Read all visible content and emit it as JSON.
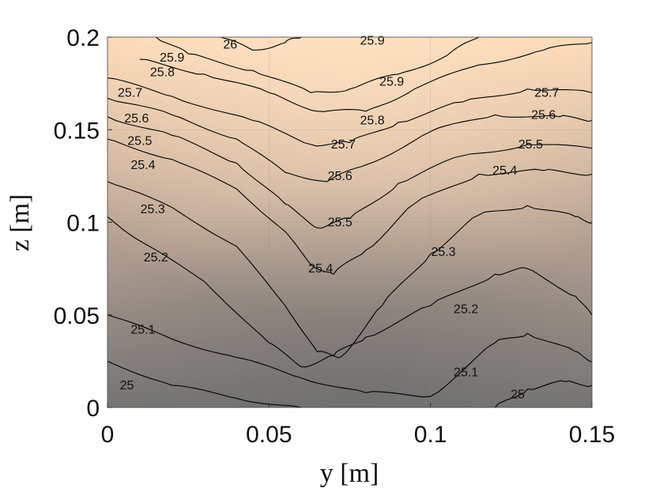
{
  "chart_data": {
    "type": "heatmap",
    "title": "",
    "xlabel": "y [m]",
    "ylabel": "z [m]",
    "xlim": [
      0,
      0.15
    ],
    "ylim": [
      0,
      0.2
    ],
    "x_ticks": [
      "0",
      "0.05",
      "0.1",
      "0.15"
    ],
    "x_tick_values": [
      0,
      0.05,
      0.1,
      0.15
    ],
    "y_ticks": [
      "0",
      "0.05",
      "0.1",
      "0.15",
      "0.2"
    ],
    "y_tick_values": [
      0,
      0.05,
      0.1,
      0.15,
      0.2
    ],
    "grid": true,
    "colormap": {
      "low": "#767676",
      "mid": "#b9a394",
      "high": "#fcd9b6"
    },
    "color_range": [
      24.95,
      26.05
    ],
    "contour_levels": [
      25,
      25.1,
      25.2,
      25.3,
      25.4,
      25.5,
      25.6,
      25.7,
      25.8,
      25.9,
      26
    ],
    "contours": [
      {
        "level": 25,
        "label": "25",
        "points": [
          [
            0,
            0.025
          ],
          [
            0.02,
            0.012
          ],
          [
            0.04,
            0.005
          ],
          [
            0.06,
            0.0
          ]
        ],
        "label_at": [
          0.006,
          0.012
        ]
      },
      {
        "level": 25,
        "label": "25",
        "points": [
          [
            0.12,
            0.0
          ],
          [
            0.13,
            0.01
          ],
          [
            0.142,
            0.014
          ],
          [
            0.15,
            0.012
          ]
        ],
        "label_at": [
          0.127,
          0.007
        ]
      },
      {
        "level": 25.1,
        "label": "25.1",
        "points": [
          [
            0,
            0.05
          ],
          [
            0.02,
            0.037
          ],
          [
            0.04,
            0.027
          ],
          [
            0.06,
            0.016
          ],
          [
            0.08,
            0.008
          ],
          [
            0.1,
            0.006
          ],
          [
            0.12,
            0.035
          ],
          [
            0.13,
            0.04
          ],
          [
            0.145,
            0.03
          ],
          [
            0.15,
            0.025
          ]
        ],
        "label_at": [
          0.011,
          0.042
        ]
      },
      {
        "level": 25.1,
        "label": "25.1",
        "points": [
          [
            0.11,
            0.02
          ]
        ],
        "label_at": [
          0.111,
          0.019
        ]
      },
      {
        "level": 25.2,
        "label": "25.2",
        "points": [
          [
            0,
            0.103
          ],
          [
            0.01,
            0.09
          ],
          [
            0.03,
            0.068
          ],
          [
            0.05,
            0.035
          ],
          [
            0.06,
            0.022
          ],
          [
            0.07,
            0.028
          ],
          [
            0.08,
            0.038
          ],
          [
            0.1,
            0.055
          ],
          [
            0.12,
            0.072
          ],
          [
            0.13,
            0.075
          ],
          [
            0.145,
            0.06
          ],
          [
            0.15,
            0.05
          ]
        ],
        "label_at": [
          0.015,
          0.081
        ]
      },
      {
        "level": 25.2,
        "label": "25.2",
        "points": [
          [
            0.11,
            0.05
          ]
        ],
        "label_at": [
          0.111,
          0.053
        ]
      },
      {
        "level": 25.3,
        "label": "25.3",
        "points": [
          [
            0,
            0.122
          ],
          [
            0.02,
            0.108
          ],
          [
            0.04,
            0.087
          ],
          [
            0.055,
            0.055
          ],
          [
            0.065,
            0.03
          ],
          [
            0.072,
            0.027
          ],
          [
            0.085,
            0.055
          ],
          [
            0.1,
            0.083
          ],
          [
            0.115,
            0.104
          ],
          [
            0.13,
            0.109
          ],
          [
            0.145,
            0.103
          ],
          [
            0.15,
            0.1
          ]
        ],
        "label_at": [
          0.014,
          0.107
        ]
      },
      {
        "level": 25.3,
        "label": "25.3",
        "points": [
          [
            0.1,
            0.082
          ]
        ],
        "label_at": [
          0.104,
          0.084
        ]
      },
      {
        "level": 25.4,
        "label": "25.4",
        "points": [
          [
            0,
            0.145
          ],
          [
            0.02,
            0.134
          ],
          [
            0.04,
            0.118
          ],
          [
            0.055,
            0.095
          ],
          [
            0.063,
            0.077
          ],
          [
            0.07,
            0.072
          ],
          [
            0.08,
            0.085
          ],
          [
            0.095,
            0.11
          ],
          [
            0.115,
            0.126
          ],
          [
            0.135,
            0.128
          ],
          [
            0.15,
            0.126
          ]
        ],
        "label_at": [
          0.011,
          0.131
        ]
      },
      {
        "level": 25.4,
        "label": "25.4",
        "points": [
          [
            0.06,
            0.075
          ]
        ],
        "label_at": [
          0.066,
          0.075
        ]
      },
      {
        "level": 25.4,
        "label": "25.4",
        "points": [
          [
            0.12,
            0.128
          ]
        ],
        "label_at": [
          0.123,
          0.128
        ]
      },
      {
        "level": 25.5,
        "label": "25.5",
        "points": [
          [
            0,
            0.157
          ],
          [
            0.02,
            0.147
          ],
          [
            0.04,
            0.132
          ],
          [
            0.055,
            0.11
          ],
          [
            0.065,
            0.097
          ],
          [
            0.075,
            0.102
          ],
          [
            0.09,
            0.121
          ],
          [
            0.11,
            0.136
          ],
          [
            0.13,
            0.142
          ],
          [
            0.15,
            0.14
          ]
        ],
        "label_at": [
          0.01,
          0.144
        ]
      },
      {
        "level": 25.5,
        "label": "25.5",
        "points": [
          [
            0.07,
            0.1
          ]
        ],
        "label_at": [
          0.072,
          0.1
        ]
      },
      {
        "level": 25.5,
        "label": "25.5",
        "points": [
          [
            0.13,
            0.142
          ]
        ],
        "label_at": [
          0.131,
          0.142
        ]
      },
      {
        "level": 25.6,
        "label": "25.6",
        "points": [
          [
            0,
            0.167
          ],
          [
            0.02,
            0.158
          ],
          [
            0.04,
            0.145
          ],
          [
            0.055,
            0.127
          ],
          [
            0.068,
            0.122
          ],
          [
            0.08,
            0.131
          ],
          [
            0.1,
            0.149
          ],
          [
            0.12,
            0.158
          ],
          [
            0.14,
            0.157
          ],
          [
            0.15,
            0.155
          ]
        ],
        "label_at": [
          0.009,
          0.156
        ]
      },
      {
        "level": 25.6,
        "label": "25.6",
        "points": [
          [
            0.07,
            0.125
          ]
        ],
        "label_at": [
          0.072,
          0.125
        ]
      },
      {
        "level": 25.6,
        "label": "25.6",
        "points": [
          [
            0.135,
            0.158
          ]
        ],
        "label_at": [
          0.135,
          0.158
        ]
      },
      {
        "level": 25.7,
        "label": "25.7",
        "points": [
          [
            0,
            0.178
          ],
          [
            0.02,
            0.168
          ],
          [
            0.045,
            0.155
          ],
          [
            0.063,
            0.142
          ],
          [
            0.075,
            0.143
          ],
          [
            0.09,
            0.154
          ],
          [
            0.11,
            0.165
          ],
          [
            0.13,
            0.172
          ],
          [
            0.15,
            0.17
          ]
        ],
        "label_at": [
          0.007,
          0.17
        ]
      },
      {
        "level": 25.7,
        "label": "25.7",
        "points": [
          [
            0.072,
            0.142
          ]
        ],
        "label_at": [
          0.073,
          0.142
        ]
      },
      {
        "level": 25.7,
        "label": "25.7",
        "points": [
          [
            0.136,
            0.17
          ]
        ],
        "label_at": [
          0.136,
          0.17
        ]
      },
      {
        "level": 25.8,
        "label": "25.8",
        "points": [
          [
            0.01,
            0.188
          ],
          [
            0.03,
            0.18
          ],
          [
            0.05,
            0.17
          ],
          [
            0.065,
            0.16
          ],
          [
            0.08,
            0.16
          ],
          [
            0.095,
            0.172
          ],
          [
            0.115,
            0.185
          ],
          [
            0.135,
            0.193
          ],
          [
            0.15,
            0.197
          ]
        ],
        "label_at": [
          0.017,
          0.181
        ]
      },
      {
        "level": 25.8,
        "label": "25.8",
        "points": [
          [
            0.082,
            0.155
          ]
        ],
        "label_at": [
          0.082,
          0.155
        ]
      },
      {
        "level": 25.9,
        "label": "25.9",
        "points": [
          [
            0.015,
            0.2
          ],
          [
            0.025,
            0.191
          ],
          [
            0.045,
            0.182
          ],
          [
            0.063,
            0.17
          ],
          [
            0.075,
            0.172
          ],
          [
            0.09,
            0.18
          ],
          [
            0.105,
            0.19
          ],
          [
            0.115,
            0.2
          ]
        ],
        "label_at": [
          0.02,
          0.189
        ]
      },
      {
        "level": 25.9,
        "label": "25.9",
        "points": [
          [
            0.088,
            0.176
          ]
        ],
        "label_at": [
          0.088,
          0.176
        ]
      },
      {
        "level": 25.9,
        "label": "25.9",
        "points": [
          [
            0.08,
            0.198
          ]
        ],
        "label_at": [
          0.082,
          0.198
        ]
      },
      {
        "level": 26,
        "label": "26",
        "points": [
          [
            0.035,
            0.2
          ],
          [
            0.045,
            0.193
          ],
          [
            0.055,
            0.197
          ],
          [
            0.06,
            0.2
          ]
        ],
        "label_at": [
          0.038,
          0.196
        ]
      }
    ]
  }
}
